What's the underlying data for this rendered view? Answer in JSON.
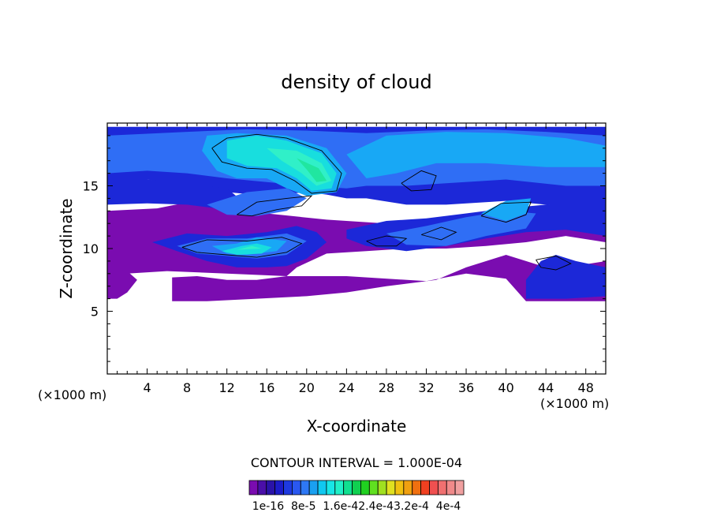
{
  "chart_data": {
    "type": "heatmap",
    "title": "density of cloud",
    "xlabel": "X-coordinate",
    "ylabel": "Z-coordinate",
    "x_unit_left": "(×1000 m)",
    "x_unit_right": "(×1000 m)",
    "xlim": [
      0,
      50
    ],
    "ylim": [
      0,
      20
    ],
    "x_ticks": [
      4,
      8,
      12,
      16,
      20,
      24,
      28,
      32,
      36,
      40,
      44,
      48
    ],
    "y_ticks": [
      5,
      10,
      15
    ],
    "contour_interval_text": "CONTOUR INTERVAL = 1.000E-04",
    "colorbar": {
      "colors": [
        "#7a0cb0",
        "#4a0fa8",
        "#2a13a8",
        "#1c1cc8",
        "#1e3ae0",
        "#2a58f0",
        "#2e78f5",
        "#1aa0f0",
        "#10c8f0",
        "#18e6e6",
        "#20f0c8",
        "#10e090",
        "#10d050",
        "#20d020",
        "#60e020",
        "#a0e020",
        "#e0e020",
        "#f0c010",
        "#f0a010",
        "#f07010",
        "#f04020",
        "#f05050",
        "#f07070",
        "#f08a8a",
        "#f0a0a0"
      ],
      "labels": [
        "1e-16",
        "8e-5",
        "1.6e-4",
        "2.4e-4",
        "3.2e-4",
        "4e-4"
      ],
      "label_line": "1e-16  8e-5  1.6e-42.4e-43.2e-4  4e-4"
    },
    "regions": [
      {
        "level": 0,
        "polygon": [
          [
            0,
            13
          ],
          [
            5,
            13.2
          ],
          [
            10,
            14
          ],
          [
            13,
            13.5
          ],
          [
            16,
            12.8
          ],
          [
            22,
            12.3
          ],
          [
            28,
            12
          ],
          [
            34,
            12.2
          ],
          [
            40,
            12.5
          ],
          [
            46,
            12.8
          ],
          [
            50,
            13
          ],
          [
            50,
            10.5
          ],
          [
            46,
            11
          ],
          [
            42,
            10.5
          ],
          [
            38,
            10.2
          ],
          [
            34,
            10
          ],
          [
            30,
            10
          ],
          [
            26,
            9.8
          ],
          [
            22,
            9.6
          ],
          [
            19,
            8.5
          ],
          [
            18,
            7.8
          ],
          [
            15,
            7.5
          ],
          [
            12,
            7.5
          ],
          [
            9,
            7.8
          ],
          [
            6.5,
            7.7
          ],
          [
            6.5,
            5.8
          ],
          [
            10,
            5.8
          ],
          [
            15,
            6
          ],
          [
            20,
            6.2
          ],
          [
            24,
            6.5
          ],
          [
            28,
            7
          ],
          [
            33,
            7.5
          ],
          [
            36,
            8.5
          ],
          [
            40,
            9.5
          ],
          [
            42,
            9
          ],
          [
            44,
            8.5
          ],
          [
            46,
            8.5
          ],
          [
            50,
            9
          ],
          [
            50,
            5.8
          ],
          [
            42,
            5.8
          ],
          [
            40,
            7.6
          ],
          [
            36,
            8
          ],
          [
            32,
            7.4
          ],
          [
            24,
            7.8
          ],
          [
            18,
            7.8
          ],
          [
            12,
            8
          ],
          [
            6,
            8.2
          ],
          [
            2,
            8
          ],
          [
            0,
            7.5
          ]
        ]
      },
      {
        "level": 0,
        "polygon": [
          [
            0,
            6
          ],
          [
            0,
            8.5
          ],
          [
            2,
            8.2
          ],
          [
            3,
            7.5
          ],
          [
            2,
            6.5
          ],
          [
            1,
            6
          ]
        ]
      },
      {
        "level": 1,
        "polygon": [
          [
            0,
            19.7
          ],
          [
            50,
            19.7
          ],
          [
            50,
            13
          ],
          [
            44,
            13.5
          ],
          [
            40,
            13.8
          ],
          [
            34,
            13.5
          ],
          [
            30,
            13.5
          ],
          [
            26,
            14
          ],
          [
            24,
            14
          ],
          [
            22,
            14.3
          ],
          [
            20,
            14.5
          ],
          [
            16,
            14.2
          ],
          [
            12,
            14.5
          ],
          [
            8,
            15
          ],
          [
            4,
            15.5
          ],
          [
            0,
            15.5
          ]
        ]
      },
      {
        "level": 1,
        "polygon": [
          [
            0,
            15.5
          ],
          [
            4,
            15.5
          ],
          [
            8,
            15.2
          ],
          [
            12,
            14.8
          ],
          [
            14,
            13.5
          ],
          [
            11,
            13.2
          ],
          [
            8,
            13.5
          ],
          [
            4,
            13.6
          ],
          [
            0,
            13.5
          ]
        ]
      },
      {
        "level": 1,
        "polygon": [
          [
            4.5,
            10.5
          ],
          [
            8,
            11.2
          ],
          [
            12,
            11
          ],
          [
            16,
            11.3
          ],
          [
            19,
            11.8
          ],
          [
            21,
            11.3
          ],
          [
            22,
            10.5
          ],
          [
            20,
            9.2
          ],
          [
            18,
            8.6
          ],
          [
            16,
            8.5
          ],
          [
            13,
            8.5
          ],
          [
            10,
            9
          ],
          [
            7,
            9.8
          ]
        ]
      },
      {
        "level": 1,
        "polygon": [
          [
            24,
            11.5
          ],
          [
            28,
            12.2
          ],
          [
            32,
            12.4
          ],
          [
            36,
            12.8
          ],
          [
            40,
            13.2
          ],
          [
            44,
            13.5
          ],
          [
            50,
            13.3
          ],
          [
            50,
            11
          ],
          [
            46,
            11.5
          ],
          [
            42,
            11.3
          ],
          [
            38,
            10.8
          ],
          [
            34,
            10.2
          ],
          [
            30,
            9.8
          ],
          [
            26,
            10.2
          ],
          [
            24,
            10.8
          ]
        ]
      },
      {
        "level": 1,
        "polygon": [
          [
            42,
            7.5
          ],
          [
            43.5,
            9
          ],
          [
            45,
            9.5
          ],
          [
            47,
            9
          ],
          [
            50,
            8.5
          ],
          [
            50,
            6.2
          ],
          [
            46,
            6
          ],
          [
            42,
            6
          ]
        ]
      },
      {
        "level": 2,
        "polygon": [
          [
            0,
            19
          ],
          [
            8,
            19.3
          ],
          [
            14,
            19.5
          ],
          [
            20,
            19.4
          ],
          [
            26,
            19.2
          ],
          [
            32,
            19.4
          ],
          [
            38,
            19.5
          ],
          [
            44,
            19.3
          ],
          [
            50,
            19
          ],
          [
            50,
            15
          ],
          [
            46,
            15
          ],
          [
            40,
            15.5
          ],
          [
            34,
            15.2
          ],
          [
            30,
            15
          ],
          [
            26,
            15
          ],
          [
            24,
            14.8
          ],
          [
            20,
            15
          ],
          [
            16,
            15.3
          ],
          [
            12,
            15.6
          ],
          [
            8,
            16
          ],
          [
            4,
            16.2
          ],
          [
            0,
            16
          ]
        ]
      },
      {
        "level": 2,
        "polygon": [
          [
            10,
            13.5
          ],
          [
            14,
            14.5
          ],
          [
            18,
            14.8
          ],
          [
            20,
            14
          ],
          [
            18,
            13
          ],
          [
            15,
            12.6
          ],
          [
            12,
            12.7
          ]
        ]
      },
      {
        "level": 2,
        "polygon": [
          [
            7,
            10.2
          ],
          [
            10,
            10.8
          ],
          [
            14,
            10.8
          ],
          [
            18,
            11.2
          ],
          [
            20,
            10.6
          ],
          [
            18,
            9.5
          ],
          [
            15,
            9.2
          ],
          [
            12,
            9.4
          ],
          [
            9,
            9.6
          ]
        ]
      },
      {
        "level": 2,
        "polygon": [
          [
            28,
            11.2
          ],
          [
            32,
            11.8
          ],
          [
            36,
            12.5
          ],
          [
            40,
            13
          ],
          [
            43,
            12.8
          ],
          [
            42,
            11.6
          ],
          [
            38,
            11
          ],
          [
            34,
            10.2
          ],
          [
            30,
            10.3
          ]
        ]
      },
      {
        "level": 3,
        "polygon": [
          [
            10,
            19
          ],
          [
            13,
            19.2
          ],
          [
            18,
            19
          ],
          [
            22,
            18
          ],
          [
            24,
            16
          ],
          [
            23,
            14.5
          ],
          [
            20,
            14.2
          ],
          [
            18,
            14.8
          ],
          [
            16,
            15.6
          ],
          [
            13,
            15.6
          ],
          [
            11,
            16.2
          ],
          [
            9.5,
            17.8
          ]
        ]
      },
      {
        "level": 3,
        "polygon": [
          [
            24,
            17.5
          ],
          [
            28,
            19
          ],
          [
            34,
            19.3
          ],
          [
            40,
            19.2
          ],
          [
            46,
            18.8
          ],
          [
            50,
            18.2
          ],
          [
            50,
            16.5
          ],
          [
            44,
            16.5
          ],
          [
            38,
            16.8
          ],
          [
            33,
            16.8
          ],
          [
            29,
            16
          ],
          [
            26,
            15.6
          ]
        ]
      },
      {
        "level": 3,
        "polygon": [
          [
            10.5,
            10.2
          ],
          [
            13,
            10.4
          ],
          [
            15,
            10.9
          ],
          [
            18,
            10.6
          ],
          [
            17,
            9.8
          ],
          [
            14,
            9.5
          ],
          [
            12,
            9.6
          ]
        ]
      },
      {
        "level": 3,
        "polygon": [
          [
            37.5,
            12.8
          ],
          [
            40,
            13.8
          ],
          [
            42.5,
            14
          ],
          [
            42,
            12.8
          ],
          [
            40,
            12.2
          ]
        ]
      },
      {
        "level": 4,
        "polygon": [
          [
            12,
            18.6
          ],
          [
            15,
            19
          ],
          [
            18,
            18.6
          ],
          [
            21.5,
            17.6
          ],
          [
            23,
            16
          ],
          [
            22.5,
            14.8
          ],
          [
            20.5,
            14.6
          ],
          [
            19,
            15.6
          ],
          [
            17,
            16.4
          ],
          [
            14,
            16.6
          ],
          [
            12,
            17.2
          ]
        ]
      },
      {
        "level": 4,
        "polygon": [
          [
            11.5,
            9.8
          ],
          [
            13.5,
            10.2
          ],
          [
            15,
            10.4
          ],
          [
            16.5,
            10.1
          ],
          [
            15.5,
            9.6
          ],
          [
            13,
            9.5
          ]
        ]
      },
      {
        "level": 5,
        "polygon": [
          [
            16,
            18
          ],
          [
            19,
            17.8
          ],
          [
            21.5,
            16.8
          ],
          [
            22.5,
            15.4
          ],
          [
            21,
            15
          ],
          [
            19.5,
            16
          ],
          [
            17.5,
            17
          ]
        ]
      },
      {
        "level": 5,
        "polygon": [
          [
            13,
            9.9
          ],
          [
            14.5,
            10.2
          ],
          [
            15.5,
            10
          ]
        ]
      },
      {
        "level": 6,
        "polygon": [
          [
            19,
            17.2
          ],
          [
            21.2,
            16.4
          ],
          [
            22,
            15.4
          ],
          [
            21,
            15.3
          ],
          [
            20,
            16.3
          ]
        ]
      }
    ],
    "contours": [
      [
        [
          10.5,
          18
        ],
        [
          12,
          18.8
        ],
        [
          15,
          19.1
        ],
        [
          18,
          18.8
        ],
        [
          21.5,
          17.8
        ],
        [
          23.5,
          16
        ],
        [
          23,
          14.6
        ],
        [
          20.5,
          14.4
        ],
        [
          18.8,
          15.4
        ],
        [
          16.5,
          16.3
        ],
        [
          14,
          16.4
        ],
        [
          11.5,
          16.9
        ],
        [
          10.5,
          18
        ]
      ],
      [
        [
          13,
          12.7
        ],
        [
          15,
          13.7
        ],
        [
          18,
          14
        ],
        [
          20.5,
          14.2
        ],
        [
          19.5,
          13.4
        ],
        [
          17,
          13.1
        ],
        [
          14.5,
          12.6
        ],
        [
          13,
          12.7
        ]
      ],
      [
        [
          29.5,
          15.2
        ],
        [
          31.5,
          16.2
        ],
        [
          33,
          15.8
        ],
        [
          32.5,
          14.7
        ],
        [
          30.5,
          14.6
        ],
        [
          29.5,
          15.2
        ]
      ],
      [
        [
          7.5,
          10.1
        ],
        [
          10,
          10.7
        ],
        [
          14,
          10.6
        ],
        [
          17.5,
          10.9
        ],
        [
          19.5,
          10.4
        ],
        [
          18,
          9.7
        ],
        [
          15,
          9.3
        ],
        [
          12,
          9.5
        ],
        [
          9,
          9.7
        ],
        [
          7.5,
          10.1
        ]
      ],
      [
        [
          26,
          10.6
        ],
        [
          28,
          11
        ],
        [
          30,
          10.8
        ],
        [
          29,
          10.2
        ],
        [
          27,
          10.2
        ],
        [
          26,
          10.6
        ]
      ],
      [
        [
          37.5,
          12.6
        ],
        [
          39.5,
          13.6
        ],
        [
          42.5,
          13.7
        ],
        [
          42,
          12.7
        ],
        [
          40,
          12.1
        ],
        [
          37.5,
          12.6
        ]
      ],
      [
        [
          43,
          9.1
        ],
        [
          45,
          9.4
        ],
        [
          46.5,
          8.8
        ],
        [
          45,
          8.3
        ],
        [
          43.5,
          8.5
        ],
        [
          43,
          9.1
        ]
      ],
      [
        [
          31.5,
          11.1
        ],
        [
          33.5,
          11.7
        ],
        [
          35,
          11.3
        ],
        [
          33.5,
          10.7
        ],
        [
          31.5,
          11.1
        ]
      ]
    ]
  }
}
